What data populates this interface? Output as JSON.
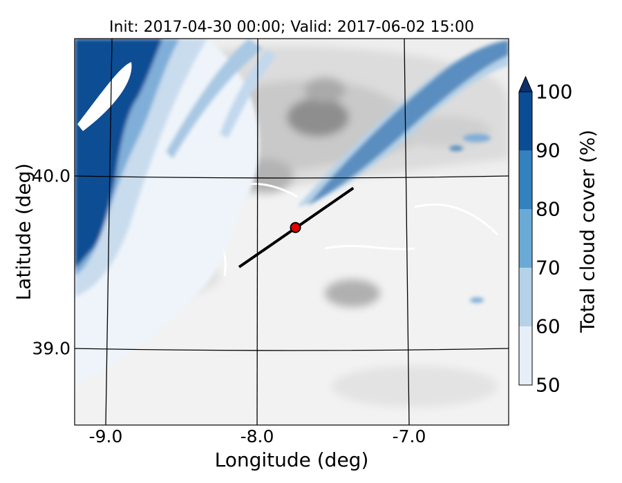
{
  "title": "Init: 2017-04-30 00:00; Valid: 2017-06-02 15:00",
  "map": {
    "xlabel": "Longitude (deg)",
    "ylabel": "Latitude (deg)",
    "lon_ticks": [
      "-9.0",
      "-8.0",
      "-7.0"
    ],
    "lat_ticks": [
      "40.0",
      "39.0"
    ],
    "lon_range": [
      -9.2,
      -6.35
    ],
    "lat_range": [
      38.55,
      40.8
    ],
    "marker": {
      "lon": -7.75,
      "lat": 39.7,
      "color": "#e00000"
    },
    "transect": {
      "start": {
        "lon": -8.12,
        "lat": 39.47
      },
      "end": {
        "lon": -7.37,
        "lat": 39.93
      }
    }
  },
  "colorbar": {
    "label": "Total cloud cover (%)",
    "ticks": [
      "50",
      "60",
      "70",
      "80",
      "90",
      "100"
    ],
    "levels": [
      50,
      60,
      70,
      80,
      90,
      100
    ],
    "colors": [
      "#e6eff8",
      "#b6d2e8",
      "#6aaad6",
      "#3381bf",
      "#0b4d94"
    ],
    "extend_color": "#0b306b"
  },
  "terrain_colors": {
    "low": "#ededed",
    "mid": "#d3d3d3",
    "high": "#9a9a9a"
  }
}
